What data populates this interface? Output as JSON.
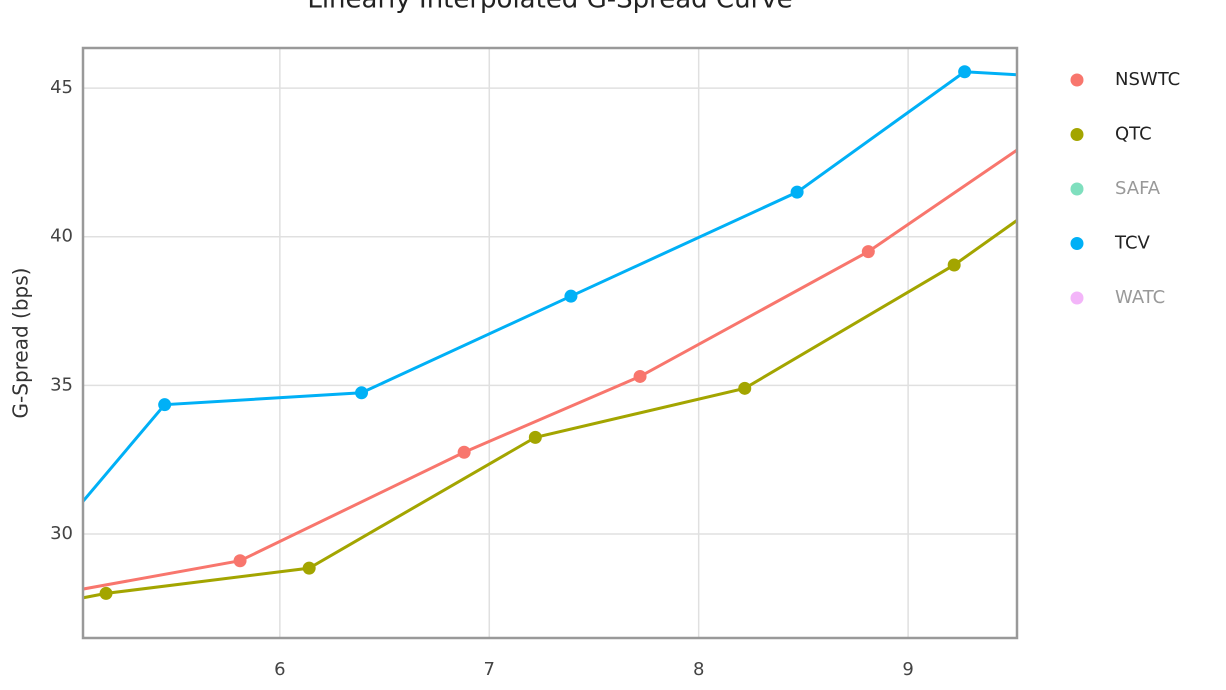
{
  "chart_data": {
    "type": "line",
    "title": "Linearly Interpolated G-Spread Curve",
    "y_label": "G-Spread (bps)",
    "xlim": [
      5.06,
      9.52
    ],
    "xticks": [
      6,
      7,
      8,
      9
    ],
    "ylim": [
      26.5,
      46.35
    ],
    "yticks": [
      30,
      35,
      40,
      45
    ],
    "grid": true,
    "legend": "right",
    "series": [
      {
        "name": "NSWTC",
        "color": "#F8766D",
        "visible": true,
        "x": [
          5.0,
          5.81,
          6.88,
          7.72,
          8.81,
          9.6
        ],
        "values": [
          28.07,
          29.1,
          32.75,
          35.3,
          39.5,
          43.3
        ]
      },
      {
        "name": "QTC",
        "color": "#A3A500",
        "visible": true,
        "x": [
          5.0,
          5.17,
          6.14,
          7.22,
          8.22,
          9.22,
          9.6
        ],
        "values": [
          27.77,
          28.0,
          28.85,
          33.25,
          34.9,
          39.05,
          40.95
        ]
      },
      {
        "name": "SAFA",
        "color": "#00BF7D",
        "visible": false,
        "x": [],
        "values": []
      },
      {
        "name": "TCV",
        "color": "#00B0F6",
        "visible": true,
        "x": [
          5.0,
          5.45,
          6.39,
          7.39,
          8.47,
          9.27,
          9.6
        ],
        "values": [
          30.6,
          34.35,
          34.75,
          38.0,
          41.5,
          45.55,
          45.42
        ]
      },
      {
        "name": "WATC",
        "color": "#E76BF3",
        "visible": false,
        "x": [],
        "values": []
      }
    ]
  }
}
